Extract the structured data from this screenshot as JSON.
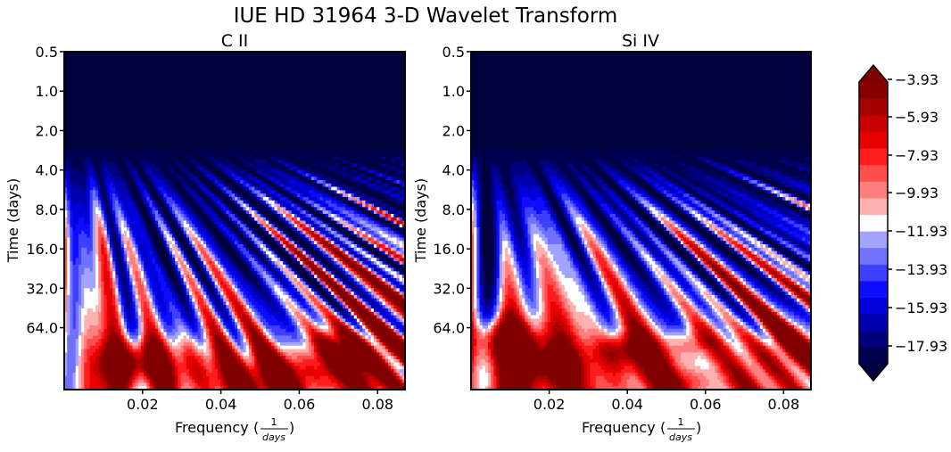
{
  "title": "IUE HD 31964 3-D Wavelet Transform",
  "panels": [
    {
      "title": "C II",
      "xlabel": "Frequency",
      "xlabel_frac_num": "1",
      "xlabel_frac_den": "days",
      "ylabel": "Time (days)"
    },
    {
      "title": "Si IV",
      "xlabel": "Frequency",
      "xlabel_frac_num": "1",
      "xlabel_frac_den": "days",
      "ylabel": "Time (days)"
    }
  ],
  "colorbar": {
    "ticks": [
      "−3.93",
      "−5.93",
      "−7.93",
      "−9.93",
      "−11.93",
      "−13.93",
      "−15.93",
      "−17.93"
    ],
    "colors": [
      "#000050",
      "#00007e",
      "#0000ad",
      "#0000dc",
      "#0d0dff",
      "#3f3fff",
      "#7171ff",
      "#a3a3ff",
      "#ffffff",
      "#ffb0b0",
      "#ff7f7f",
      "#ff4e4e",
      "#ff1d1d",
      "#e80000",
      "#c80000",
      "#a70000",
      "#860000"
    ],
    "under_color": "#00003c",
    "over_color": "#800000"
  },
  "chart_data": [
    {
      "type": "heatmap",
      "title": "C II",
      "xlabel": "Frequency (1/days)",
      "ylabel": "Time (days)",
      "x_ticks": [
        "0.02",
        "0.04",
        "0.06",
        "0.08"
      ],
      "y_ticks": [
        "0.5",
        "1.0",
        "2.0",
        "4.0",
        "8.0",
        "16.0",
        "32.0",
        "64.0"
      ],
      "xlim": [
        0.0,
        0.087
      ],
      "ylim": [
        0.5,
        190
      ],
      "y_scale": "log2",
      "y_inverted": true,
      "color_range": [
        -19.0,
        -3.93
      ],
      "description_levels": "power (dB-like) filled contours"
    },
    {
      "type": "heatmap",
      "title": "Si IV",
      "xlabel": "Frequency (1/days)",
      "ylabel": "Time (days)",
      "x_ticks": [
        "0.02",
        "0.04",
        "0.06",
        "0.08"
      ],
      "y_ticks": [
        "0.5",
        "1.0",
        "2.0",
        "4.0",
        "8.0",
        "16.0",
        "32.0",
        "64.0"
      ],
      "xlim": [
        0.0,
        0.087
      ],
      "ylim": [
        0.5,
        190
      ],
      "y_scale": "log2",
      "y_inverted": true,
      "color_range": [
        -19.0,
        -3.93
      ]
    }
  ]
}
